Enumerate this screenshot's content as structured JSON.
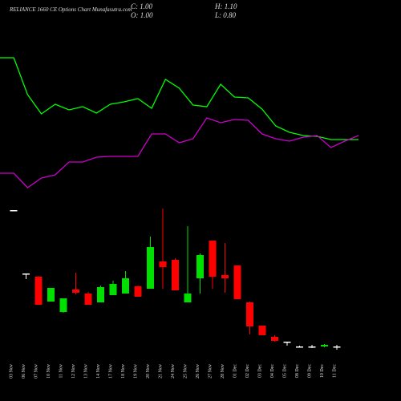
{
  "chart_data": {
    "type": "candlestick",
    "title": "RELIANCE 1660  CE Options  Chart Munafasutra.com",
    "ohlc_labels": [
      "C: 1.00",
      "H: 1.10",
      "O: 1.00",
      "L: 0.80"
    ],
    "categories": [
      "03 Nov",
      "06 Nov",
      "07 Nov",
      "10 Nov",
      "11 Nov",
      "12 Nov",
      "13 Nov",
      "14 Nov",
      "17 Nov",
      "18 Nov",
      "19 Nov",
      "20 Nov",
      "21 Nov",
      "24 Nov",
      "25 Nov",
      "26 Nov",
      "27 Nov",
      "28 Nov",
      "01 Dec",
      "02 Dec",
      "03 Dec",
      "04 Dec",
      "05 Dec",
      "08 Dec",
      "09 Dec",
      "10 Dec",
      "11 Dec"
    ],
    "open": [
      9.5,
      5.55,
      5.35,
      3.8,
      3.15,
      4.55,
      4.3,
      3.75,
      4.2,
      4.3,
      4.75,
      4.6,
      6.3,
      6.4,
      3.75,
      5.25,
      7.6,
      5.45,
      6.05,
      3.75,
      2.3,
      1.6,
      1.3,
      1.0,
      1.0,
      1.0,
      1.0
    ],
    "high": [
      9.5,
      5.55,
      5.4,
      4.65,
      4.0,
      5.6,
      4.4,
      4.8,
      5.1,
      5.7,
      4.8,
      7.85,
      9.6,
      6.5,
      8.5,
      6.8,
      7.6,
      7.45,
      6.05,
      3.8,
      2.3,
      1.7,
      1.3,
      1.05,
      1.1,
      1.15,
      1.1
    ],
    "low": [
      9.5,
      5.2,
      3.6,
      3.8,
      3.1,
      4.25,
      3.6,
      3.75,
      4.2,
      4.3,
      4.1,
      4.6,
      4.6,
      4.5,
      3.75,
      4.3,
      4.6,
      4.35,
      3.95,
      1.75,
      1.7,
      1.3,
      1.05,
      0.95,
      0.9,
      0.95,
      0.8
    ],
    "close": [
      9.5,
      5.55,
      3.6,
      4.65,
      4.0,
      4.35,
      3.6,
      4.7,
      4.9,
      5.25,
      4.1,
      7.2,
      5.95,
      4.5,
      4.3,
      6.7,
      5.35,
      5.25,
      3.95,
      2.25,
      1.7,
      1.35,
      1.3,
      1.0,
      1.0,
      1.1,
      1.0
    ],
    "ylim": [
      0.6,
      10
    ],
    "up_color": "#00e000",
    "down_color": "#ff0000",
    "flat_color": "#ffffff",
    "lines": [
      {
        "color": "#00ff00",
        "axis": "y2",
        "values": [
          178,
          178,
          132,
          108,
          120,
          113,
          117,
          109,
          120,
          123,
          127,
          115,
          151,
          140,
          119,
          117,
          145,
          129,
          128,
          114,
          93,
          85,
          81,
          80,
          76,
          76,
          76
        ]
      },
      {
        "color": "#cc00cc",
        "axis": "y2",
        "values": [
          34,
          34,
          16,
          28,
          32,
          48,
          48,
          54,
          55,
          55,
          55,
          83,
          83,
          72,
          77,
          103,
          97,
          101,
          100,
          83,
          77,
          74,
          79,
          81,
          66,
          74,
          81
        ]
      }
    ],
    "y2lim": [
      0,
      200
    ]
  }
}
